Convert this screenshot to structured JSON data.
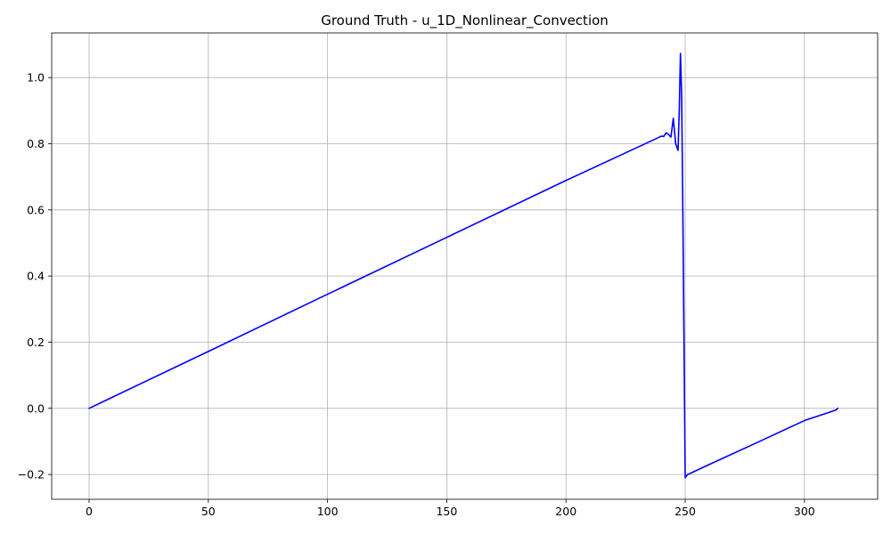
{
  "chart_data": {
    "type": "line",
    "title": "Ground Truth - u_1D_Nonlinear_Convection",
    "xlabel": "",
    "ylabel": "",
    "xlim": [
      -15.7,
      330.7
    ],
    "ylim": [
      -0.275,
      1.135
    ],
    "xticks": [
      0,
      50,
      100,
      150,
      200,
      250,
      300
    ],
    "xtick_labels": [
      "0",
      "50",
      "100",
      "150",
      "200",
      "250",
      "300"
    ],
    "yticks": [
      -0.2,
      0.0,
      0.2,
      0.4,
      0.6,
      0.8,
      1.0
    ],
    "ytick_labels": [
      "−0.2",
      "0.0",
      "0.2",
      "0.4",
      "0.6",
      "0.8",
      "1.0"
    ],
    "grid": true,
    "series": [
      {
        "color": "#0000ff",
        "x": [
          0,
          50,
          100,
          150,
          200,
          238,
          240,
          241,
          242,
          243,
          244,
          245,
          246,
          247,
          247.5,
          248,
          248.5,
          249,
          250,
          251,
          252,
          260,
          280,
          300,
          310,
          312,
          313,
          314
        ],
        "y": [
          0.0,
          0.172,
          0.345,
          0.517,
          0.689,
          0.816,
          0.823,
          0.822,
          0.833,
          0.828,
          0.82,
          0.877,
          0.8,
          0.78,
          0.9,
          1.073,
          0.95,
          0.6,
          -0.21,
          -0.2,
          -0.197,
          -0.17,
          -0.104,
          -0.037,
          -0.013,
          -0.008,
          -0.006,
          0.0
        ]
      }
    ]
  }
}
